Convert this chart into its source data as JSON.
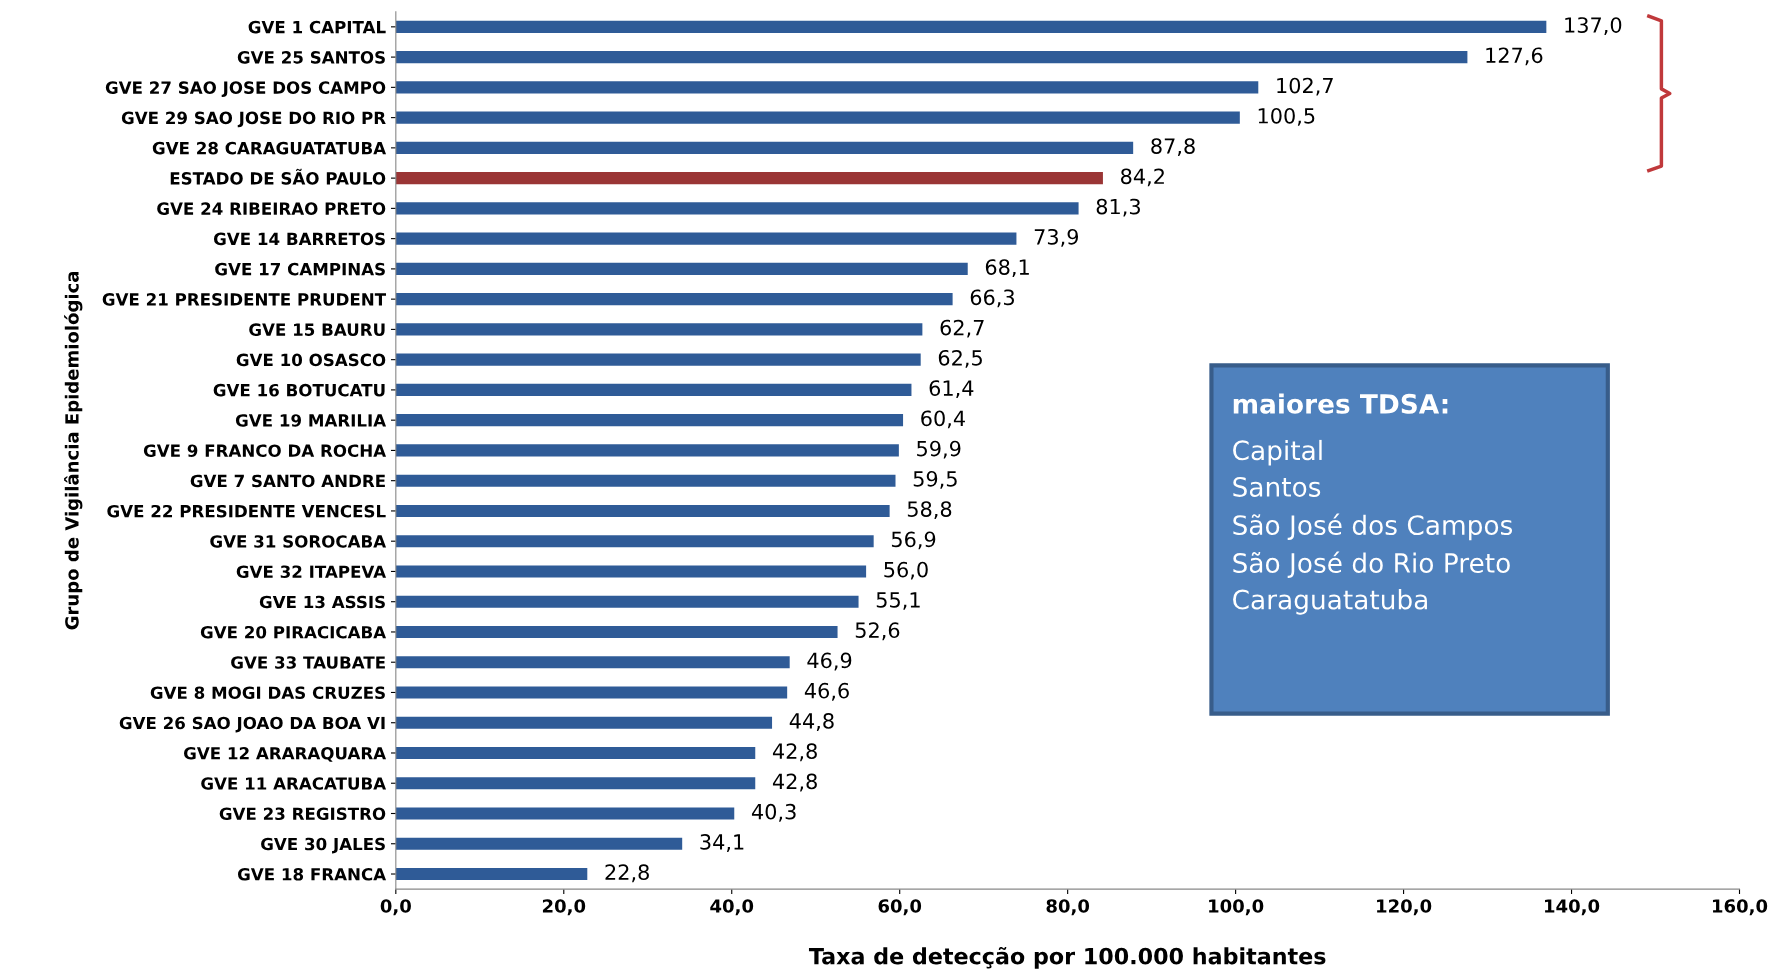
{
  "chart_data": {
    "type": "bar",
    "orientation": "horizontal",
    "categories": [
      "GVE 1 CAPITAL",
      "GVE 25 SANTOS",
      "GVE 27 SAO JOSE DOS CAMPO",
      "GVE 29 SAO JOSE DO RIO PR",
      "GVE 28 CARAGUATATUBA",
      "ESTADO DE SÃO PAULO",
      "GVE 24 RIBEIRAO PRETO",
      "GVE 14 BARRETOS",
      "GVE 17 CAMPINAS",
      "GVE 21 PRESIDENTE PRUDENT",
      "GVE 15 BAURU",
      "GVE 10 OSASCO",
      "GVE 16 BOTUCATU",
      "GVE 19 MARILIA",
      "GVE 9 FRANCO DA ROCHA",
      "GVE 7 SANTO ANDRE",
      "GVE 22 PRESIDENTE VENCESL",
      "GVE 31 SOROCABA",
      "GVE 32 ITAPEVA",
      "GVE 13 ASSIS",
      "GVE 20 PIRACICABA",
      "GVE 33 TAUBATE",
      "GVE 8 MOGI DAS CRUZES",
      "GVE 26 SAO JOAO DA BOA VI",
      "GVE 12 ARARAQUARA",
      "GVE 11 ARACATUBA",
      "GVE 23 REGISTRO",
      "GVE 30 JALES",
      "GVE 18 FRANCA"
    ],
    "values": [
      137.0,
      127.6,
      102.7,
      100.5,
      87.8,
      84.2,
      81.3,
      73.9,
      68.1,
      66.3,
      62.7,
      62.5,
      61.4,
      60.4,
      59.9,
      59.5,
      58.8,
      56.9,
      56.0,
      55.1,
      52.6,
      46.9,
      46.6,
      44.8,
      42.8,
      42.8,
      40.3,
      34.1,
      22.8
    ],
    "value_labels": [
      "137,0",
      "127,6",
      "102,7",
      "100,5",
      "87,8",
      "84,2",
      "81,3",
      "73,9",
      "68,1",
      "66,3",
      "62,7",
      "62,5",
      "61,4",
      "60,4",
      "59,9",
      "59,5",
      "58,8",
      "56,9",
      "56,0",
      "55,1",
      "52,6",
      "46,9",
      "46,6",
      "44,8",
      "42,8",
      "42,8",
      "40,3",
      "34,1",
      "22,8"
    ],
    "colors": [
      "#2f5b97",
      "#2f5b97",
      "#2f5b97",
      "#2f5b97",
      "#2f5b97",
      "#9a3535",
      "#2f5b97",
      "#2f5b97",
      "#2f5b97",
      "#2f5b97",
      "#2f5b97",
      "#2f5b97",
      "#2f5b97",
      "#2f5b97",
      "#2f5b97",
      "#2f5b97",
      "#2f5b97",
      "#2f5b97",
      "#2f5b97",
      "#2f5b97",
      "#2f5b97",
      "#2f5b97",
      "#2f5b97",
      "#2f5b97",
      "#2f5b97",
      "#2f5b97",
      "#2f5b97",
      "#2f5b97",
      "#2f5b97"
    ],
    "xlim": [
      0,
      160
    ],
    "xticks": [
      {
        "value": 0,
        "label": "0,0"
      },
      {
        "value": 20,
        "label": "20,0"
      },
      {
        "value": 40,
        "label": "40,0"
      },
      {
        "value": 60,
        "label": "60,0"
      },
      {
        "value": 80,
        "label": "80,0"
      },
      {
        "value": 100,
        "label": "100,0"
      },
      {
        "value": 120,
        "label": "120,0"
      },
      {
        "value": 140,
        "label": "140,0"
      },
      {
        "value": 160,
        "label": "160,0"
      }
    ],
    "xlabel": "Taxa de detecção por 100.000 habitantes",
    "ylabel": "Grupo de Vigilância Epidemiológica",
    "annotations": [
      "maiores TDSA:\nCapital\nSantos\nSão José dos Campos\nSão José do Rio Preto\nCaraguatatuba"
    ],
    "grid": false,
    "legend": false
  }
}
